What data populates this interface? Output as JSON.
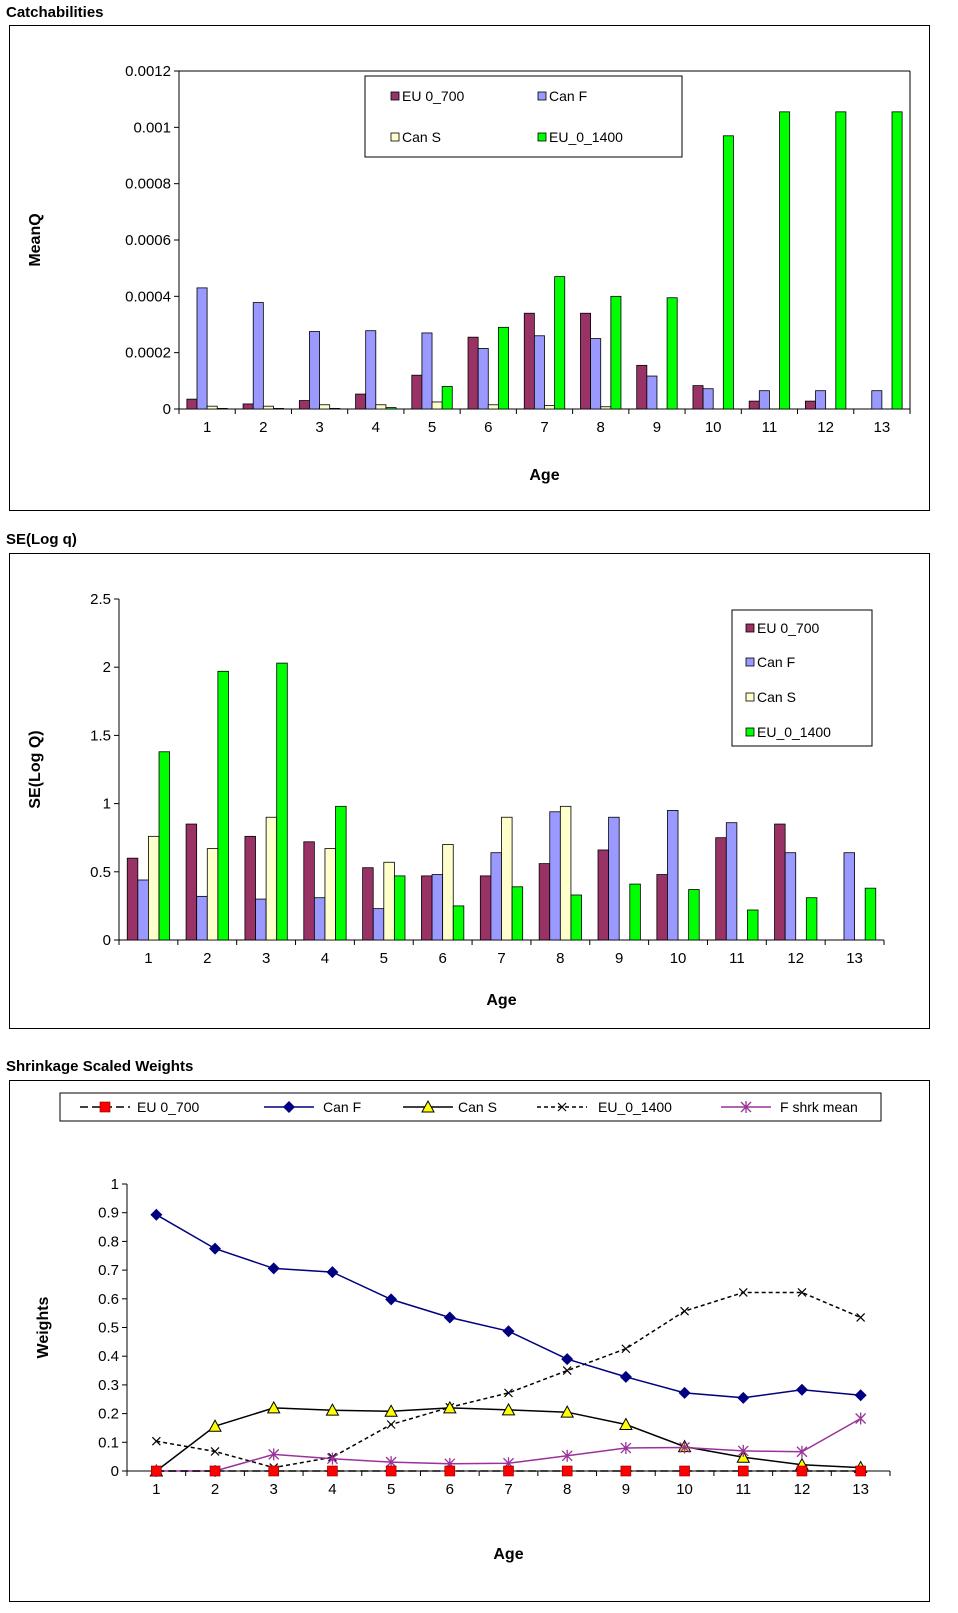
{
  "sections": {
    "catch_title": "Catchabilities",
    "se_title": "SE(Log q)",
    "shrink_title": "Shrinkage Scaled Weights"
  },
  "colors": {
    "eu700": "#993366",
    "canf": "#9999ff",
    "cans": "#ffffcc",
    "eu1400": "#00ff00",
    "line_eu700": "#ff0000",
    "line_canf": "#000080",
    "line_cans": "#ffff00",
    "line_eu1400": "#000000",
    "line_fshrk": "#993399"
  },
  "chart_data": [
    {
      "type": "bar",
      "title": "",
      "xlabel": "Age",
      "ylabel": "MeanQ",
      "ylim": [
        0,
        0.0012
      ],
      "yticks": [
        "0",
        "0.0002",
        "0.0004",
        "0.0006",
        "0.0008",
        "0.001",
        "0.0012"
      ],
      "ytick_values": [
        0,
        0.0002,
        0.0004,
        0.0006,
        0.0008,
        0.001,
        0.0012
      ],
      "categories": [
        "1",
        "2",
        "3",
        "4",
        "5",
        "6",
        "7",
        "8",
        "9",
        "10",
        "11",
        "12",
        "13"
      ],
      "legend_position": "top-center",
      "series": [
        {
          "name": "EU 0_700",
          "values": [
            3.5e-05,
            1.8e-05,
            3e-05,
            5.3e-05,
            0.00012,
            0.000255,
            0.00034,
            0.00034,
            0.000155,
            8.3e-05,
            2.8e-05,
            2.8e-05,
            0
          ]
        },
        {
          "name": "Can F",
          "values": [
            0.00043,
            0.000378,
            0.000275,
            0.000278,
            0.00027,
            0.000215,
            0.00026,
            0.00025,
            0.000117,
            7.2e-05,
            6.5e-05,
            6.5e-05,
            6.5e-05
          ]
        },
        {
          "name": "Can S",
          "values": [
            1e-05,
            1e-05,
            1.5e-05,
            1.5e-05,
            2.5e-05,
            1.5e-05,
            1.2e-05,
            8e-06,
            0,
            0,
            0,
            0,
            0
          ]
        },
        {
          "name": "EU_0_1400",
          "values": [
            2e-06,
            2e-06,
            2e-06,
            5e-06,
            8e-05,
            0.00029,
            0.00047,
            0.0004,
            0.000395,
            0.00097,
            0.001055,
            0.001055,
            0.001055
          ]
        }
      ]
    },
    {
      "type": "bar",
      "title": "",
      "xlabel": "Age",
      "ylabel": "SE(Log Q)",
      "ylim": [
        0,
        2.5
      ],
      "yticks": [
        "0",
        "0.5",
        "1",
        "1.5",
        "2",
        "2.5"
      ],
      "ytick_values": [
        0,
        0.5,
        1,
        1.5,
        2,
        2.5
      ],
      "categories": [
        "1",
        "2",
        "3",
        "4",
        "5",
        "6",
        "7",
        "8",
        "9",
        "10",
        "11",
        "12",
        "13"
      ],
      "legend_position": "top-right",
      "series": [
        {
          "name": "EU 0_700",
          "values": [
            0.6,
            0.85,
            0.76,
            0.72,
            0.53,
            0.47,
            0.47,
            0.56,
            0.66,
            0.48,
            0.75,
            0.85,
            0
          ]
        },
        {
          "name": "Can F",
          "values": [
            0.44,
            0.32,
            0.3,
            0.31,
            0.23,
            0.48,
            0.64,
            0.94,
            0.9,
            0.95,
            0.86,
            0.64,
            0.64
          ]
        },
        {
          "name": "Can S",
          "values": [
            0.76,
            0.67,
            0.9,
            0.67,
            0.57,
            0.7,
            0.9,
            0.98,
            0,
            0,
            0,
            0,
            0
          ]
        },
        {
          "name": "EU_0_1400",
          "values": [
            1.38,
            1.97,
            2.03,
            0.98,
            0.47,
            0.25,
            0.39,
            0.33,
            0.41,
            0.37,
            0.22,
            0.31,
            0.38
          ]
        }
      ]
    },
    {
      "type": "line",
      "title": "",
      "xlabel": "Age",
      "ylabel": "Weights",
      "ylim": [
        0,
        1
      ],
      "yticks": [
        "0",
        "0.1",
        "0.2",
        "0.3",
        "0.4",
        "0.5",
        "0.6",
        "0.7",
        "0.8",
        "0.9",
        "1"
      ],
      "ytick_values": [
        0,
        0.1,
        0.2,
        0.3,
        0.4,
        0.5,
        0.6,
        0.7,
        0.8,
        0.9,
        1
      ],
      "categories": [
        "1",
        "2",
        "3",
        "4",
        "5",
        "6",
        "7",
        "8",
        "9",
        "10",
        "11",
        "12",
        "13"
      ],
      "legend_position": "top",
      "series": [
        {
          "name": "EU 0_700",
          "values": [
            0,
            0,
            0,
            0,
            0,
            0,
            0,
            0,
            0,
            0,
            0,
            0,
            0
          ]
        },
        {
          "name": "Can F",
          "values": [
            0.893,
            0.775,
            0.706,
            0.693,
            0.598,
            0.535,
            0.487,
            0.39,
            0.328,
            0.272,
            0.255,
            0.283,
            0.264
          ]
        },
        {
          "name": "Can S",
          "values": [
            0,
            0.156,
            0.22,
            0.212,
            0.208,
            0.22,
            0.213,
            0.205,
            0.162,
            0.085,
            0.048,
            0.022,
            0.012
          ]
        },
        {
          "name": "EU_0_1400",
          "values": [
            0.104,
            0.068,
            0.012,
            0.048,
            0.162,
            0.222,
            0.272,
            0.35,
            0.426,
            0.557,
            0.622,
            0.622,
            0.535
          ]
        },
        {
          "name": "F shrk mean",
          "values": [
            0,
            0,
            0.058,
            0.043,
            0.031,
            0.025,
            0.027,
            0.053,
            0.08,
            0.082,
            0.07,
            0.067,
            0.183
          ]
        }
      ]
    }
  ]
}
